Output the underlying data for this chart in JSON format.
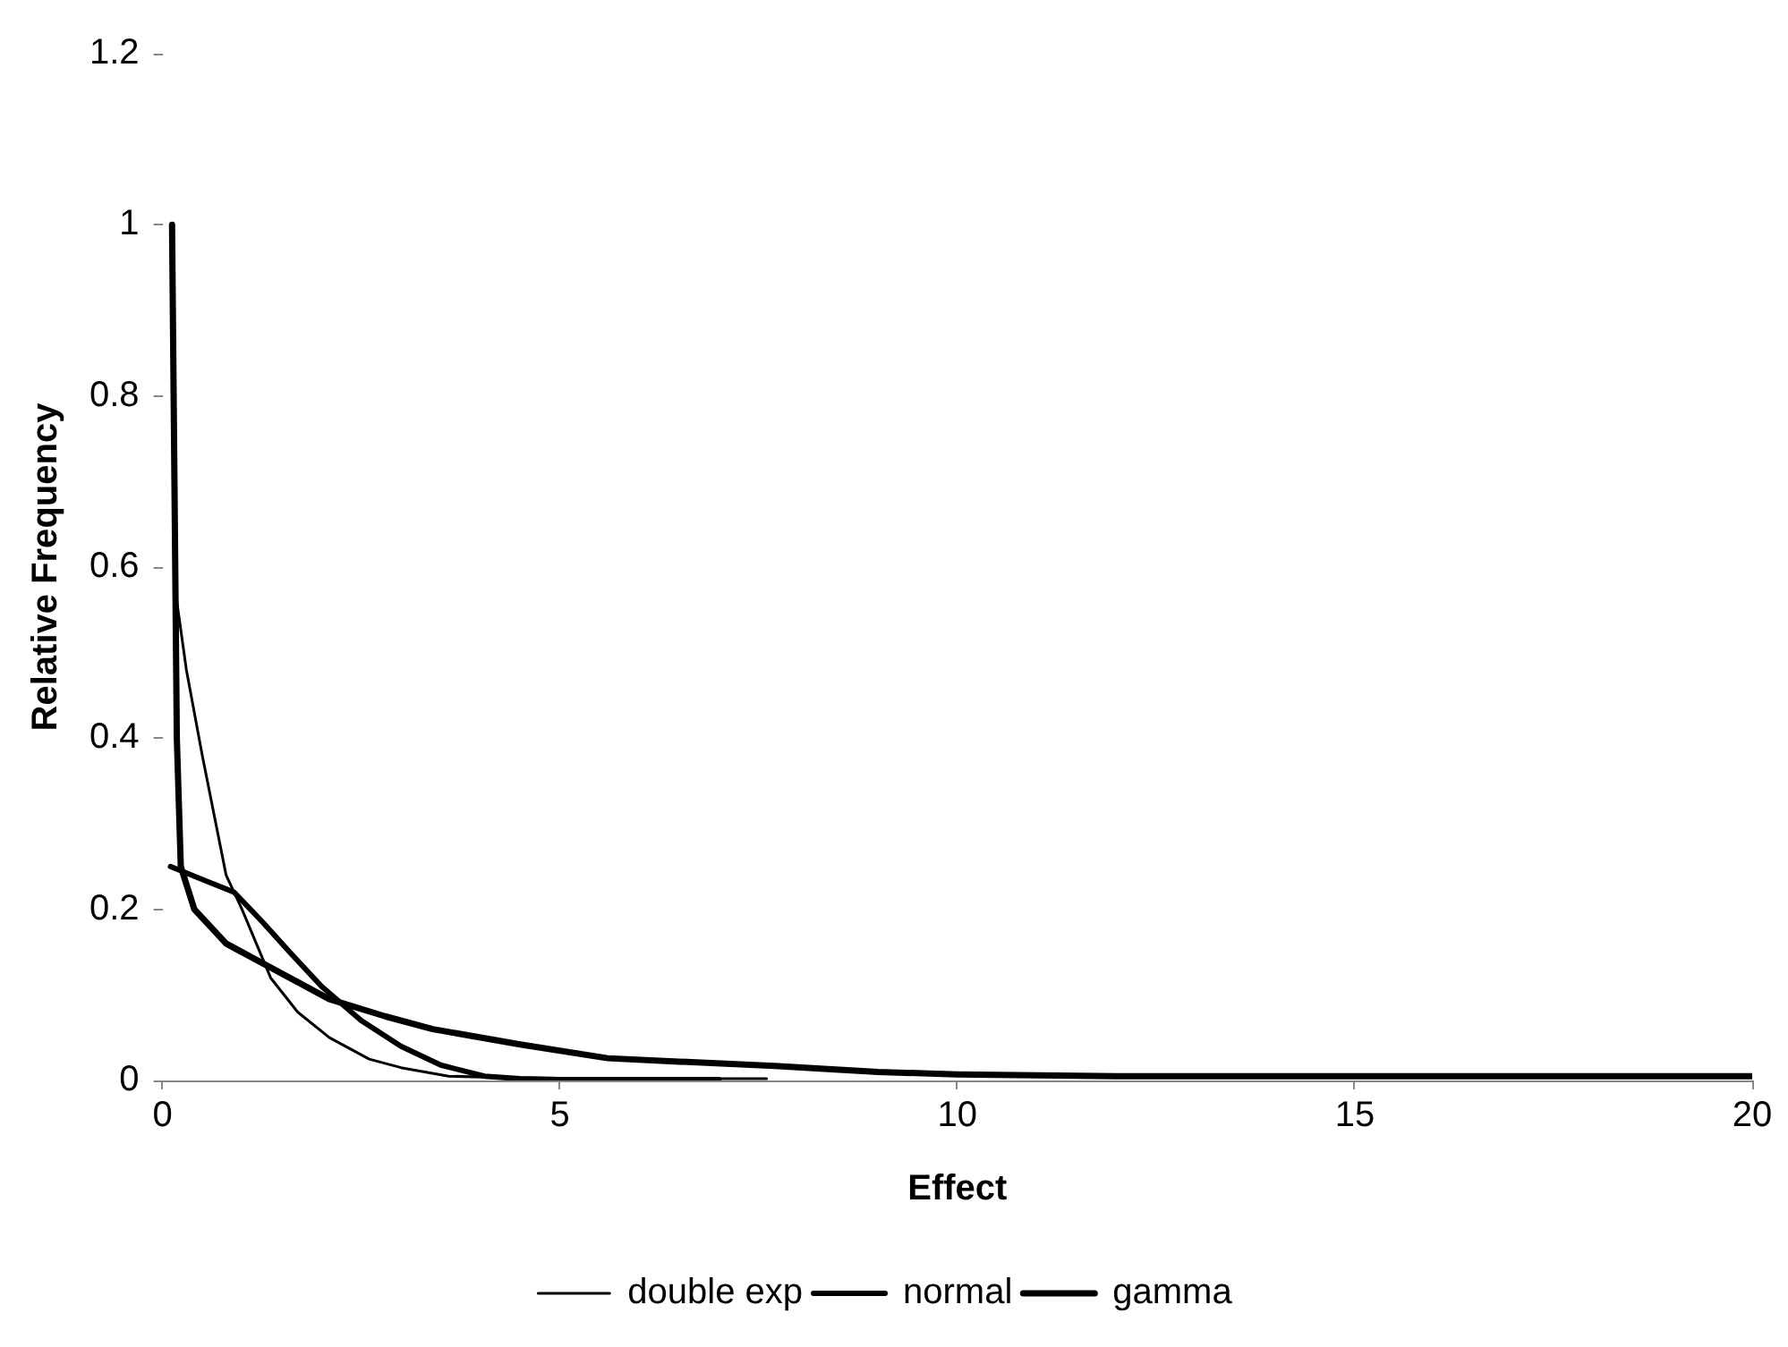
{
  "chart_data": {
    "type": "line",
    "xlabel": "Effect",
    "ylabel": "Relative Frequency",
    "xlim": [
      0,
      20
    ],
    "ylim": [
      0,
      1.2
    ],
    "xticks": [
      0,
      5,
      10,
      15,
      20
    ],
    "yticks": [
      0,
      0.2,
      0.4,
      0.6,
      0.8,
      1,
      1.2
    ],
    "grid": false,
    "legend": "bottom",
    "marker": "none",
    "line_style": "solid",
    "series": [
      {
        "name": "double exp",
        "color": "#000000",
        "x": [
          0.15,
          0.3,
          0.5,
          0.8,
          1.0,
          1.36,
          1.7,
          2.1,
          2.6,
          3.0,
          3.6,
          4.5,
          6.0,
          7.6
        ],
        "values": [
          0.58,
          0.48,
          0.38,
          0.24,
          0.2,
          0.12,
          0.08,
          0.05,
          0.025,
          0.015,
          0.005,
          0.003,
          0.002,
          0.002
        ]
      },
      {
        "name": "normal",
        "color": "#000000",
        "x": [
          0.1,
          0.5,
          0.9,
          1.26,
          1.6,
          2.0,
          2.5,
          3.0,
          3.5,
          4.05,
          4.5,
          5.0,
          7.0
        ],
        "values": [
          0.25,
          0.235,
          0.22,
          0.185,
          0.15,
          0.11,
          0.07,
          0.04,
          0.018,
          0.005,
          0.002,
          0.001,
          0.001
        ]
      },
      {
        "name": "gamma",
        "color": "#000000",
        "x": [
          0.12,
          0.15,
          0.18,
          0.23,
          0.4,
          0.8,
          1.3,
          2.1,
          2.8,
          3.4,
          4.5,
          5.6,
          6.5,
          7.7,
          9,
          10,
          12,
          15,
          20
        ],
        "values": [
          1.0,
          0.7,
          0.4,
          0.25,
          0.2,
          0.16,
          0.135,
          0.095,
          0.075,
          0.06,
          0.042,
          0.026,
          0.022,
          0.017,
          0.01,
          0.007,
          0.005,
          0.005,
          0.005
        ]
      }
    ]
  }
}
